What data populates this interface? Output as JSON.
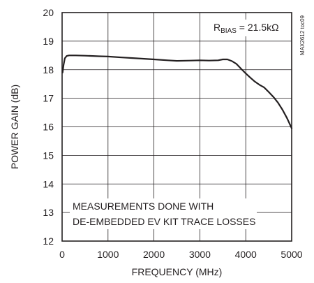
{
  "chart_data": {
    "type": "line",
    "xlabel": "FREQUENCY (MHz)",
    "ylabel": "POWER GAIN (dB)",
    "xlim": [
      0,
      5000
    ],
    "ylim": [
      12,
      20
    ],
    "x_ticks": [
      "0",
      "1000",
      "2000",
      "3000",
      "4000",
      "5000"
    ],
    "y_ticks": [
      "12",
      "13",
      "14",
      "15",
      "16",
      "17",
      "18",
      "19",
      "20"
    ],
    "grid": true,
    "annotations": {
      "bias": {
        "prefix": "R",
        "subscript": "BIAS",
        "suffix": " = 21.5kΩ"
      },
      "note_line1": "MEASUREMENTS DONE WITH",
      "note_line2": "DE-EMBEDDED EV KIT TRACE LOSSES",
      "figure_id": "MAX2612 toc09"
    },
    "series": [
      {
        "color": "#231f20",
        "x": [
          10,
          30,
          60,
          100,
          150,
          200,
          300,
          500,
          800,
          1000,
          1300,
          1600,
          2000,
          2300,
          2500,
          2800,
          3000,
          3200,
          3400,
          3500,
          3600,
          3700,
          3800,
          3900,
          4000,
          4100,
          4200,
          4300,
          4400,
          4500,
          4600,
          4700,
          4800,
          4900,
          5000
        ],
        "y": [
          17.9,
          18.15,
          18.4,
          18.48,
          18.5,
          18.5,
          18.5,
          18.49,
          18.47,
          18.46,
          18.43,
          18.4,
          18.36,
          18.33,
          18.31,
          18.32,
          18.33,
          18.32,
          18.33,
          18.36,
          18.36,
          18.3,
          18.2,
          18.03,
          17.87,
          17.72,
          17.58,
          17.47,
          17.38,
          17.22,
          17.05,
          16.85,
          16.6,
          16.3,
          15.95
        ]
      }
    ]
  }
}
